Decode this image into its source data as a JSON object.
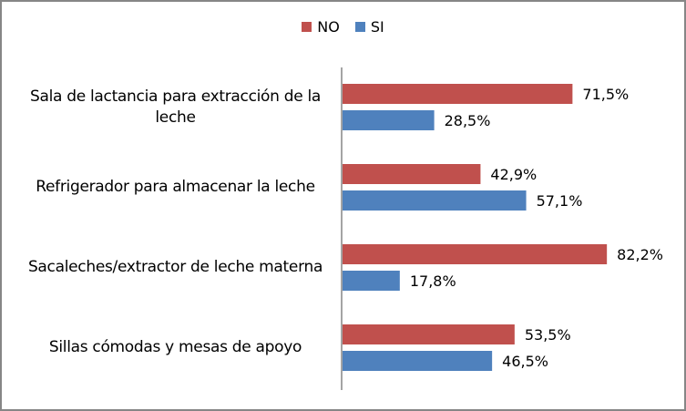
{
  "chart_data": {
    "type": "bar",
    "orientation": "horizontal",
    "title": "",
    "xlabel": "",
    "ylabel": "",
    "xlim": [
      0,
      100
    ],
    "grid": false,
    "legend_position": "top-center",
    "categories": [
      "Sala de lactancia para extracción de la leche",
      "Refrigerador para almacenar la leche",
      "Sacaleches/extractor de leche materna",
      "Sillas cómodas y mesas de apoyo"
    ],
    "series": [
      {
        "name": "NO",
        "color": "#C0504D",
        "values": [
          71.5,
          42.9,
          82.2,
          53.5
        ],
        "labels": [
          "71,5%",
          "42,9%",
          "82,2%",
          "53,5%"
        ]
      },
      {
        "name": "SI",
        "color": "#4F81BD",
        "values": [
          28.5,
          57.1,
          17.8,
          46.5
        ],
        "labels": [
          "28,5%",
          "57,1%",
          "17,8%",
          "46,5%"
        ]
      }
    ]
  },
  "category_label_lines": [
    [
      "Sala de lactancia para extracción de la",
      "leche"
    ],
    [
      "Refrigerador para almacenar la leche"
    ],
    [
      "Sacaleches/extractor de leche materna"
    ],
    [
      "Sillas cómodas y mesas de apoyo"
    ]
  ],
  "legend": {
    "items": [
      {
        "label": "NO",
        "color": "#C0504D"
      },
      {
        "label": "SI",
        "color": "#4F81BD"
      }
    ]
  }
}
